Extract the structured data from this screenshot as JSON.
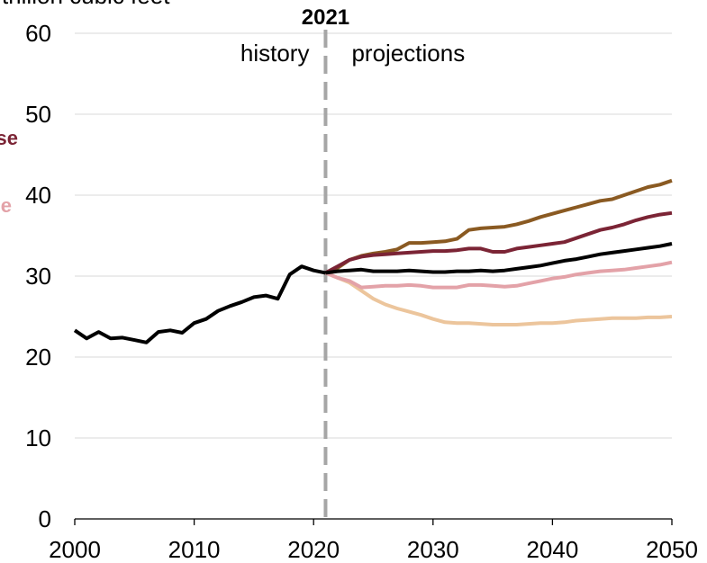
{
  "chart_data": {
    "type": "line",
    "ylabel": "trillion cubic feet",
    "vline": 2021,
    "annotations": [
      {
        "text": "history"
      },
      {
        "text": "projections"
      },
      {
        "text": "se",
        "color": "#7b2435"
      },
      {
        "text": "e",
        "color": "#e3a2a8"
      }
    ],
    "x": [
      2000,
      2001,
      2002,
      2003,
      2004,
      2005,
      2006,
      2007,
      2008,
      2009,
      2010,
      2011,
      2012,
      2013,
      2014,
      2015,
      2016,
      2017,
      2018,
      2019,
      2020,
      2021,
      2022,
      2023,
      2024,
      2025,
      2026,
      2027,
      2028,
      2029,
      2030,
      2031,
      2032,
      2033,
      2034,
      2035,
      2036,
      2037,
      2038,
      2039,
      2040,
      2041,
      2042,
      2043,
      2044,
      2045,
      2046,
      2047,
      2048,
      2049,
      2050
    ],
    "series": [
      {
        "color": "#ecc59c",
        "values": [
          null,
          null,
          null,
          null,
          null,
          null,
          null,
          null,
          null,
          null,
          null,
          null,
          null,
          null,
          null,
          null,
          null,
          null,
          null,
          null,
          null,
          30.4,
          29.8,
          29.2,
          28.2,
          27.2,
          26.5,
          26.0,
          25.6,
          25.2,
          24.7,
          24.3,
          24.2,
          24.2,
          24.1,
          24.0,
          24.0,
          24.0,
          24.1,
          24.2,
          24.2,
          24.3,
          24.5,
          24.6,
          24.7,
          24.8,
          24.8,
          24.8,
          24.9,
          24.9,
          25.0
        ]
      },
      {
        "color": "#e3a2a8",
        "values": [
          null,
          null,
          null,
          null,
          null,
          null,
          null,
          null,
          null,
          null,
          null,
          null,
          null,
          null,
          null,
          null,
          null,
          null,
          null,
          null,
          null,
          30.4,
          29.8,
          29.4,
          28.6,
          28.7,
          28.8,
          28.8,
          28.9,
          28.8,
          28.6,
          28.6,
          28.6,
          28.9,
          28.9,
          28.8,
          28.7,
          28.8,
          29.1,
          29.4,
          29.7,
          29.9,
          30.2,
          30.4,
          30.6,
          30.7,
          30.8,
          31.0,
          31.2,
          31.4,
          31.7
        ]
      },
      {
        "color": "#8a5a22",
        "values": [
          null,
          null,
          null,
          null,
          null,
          null,
          null,
          null,
          null,
          null,
          null,
          null,
          null,
          null,
          null,
          null,
          null,
          null,
          null,
          null,
          null,
          30.4,
          31.0,
          32.0,
          32.5,
          32.8,
          33.0,
          33.3,
          34.1,
          34.1,
          34.2,
          34.3,
          34.6,
          35.7,
          35.9,
          36.0,
          36.1,
          36.4,
          36.8,
          37.3,
          37.7,
          38.1,
          38.5,
          38.9,
          39.3,
          39.5,
          40.0,
          40.5,
          41.0,
          41.3,
          41.8
        ]
      },
      {
        "color": "#7b2435",
        "values": [
          null,
          null,
          null,
          null,
          null,
          null,
          null,
          null,
          null,
          null,
          null,
          null,
          null,
          null,
          null,
          null,
          null,
          null,
          null,
          null,
          null,
          30.4,
          31.2,
          32.0,
          32.4,
          32.6,
          32.7,
          32.8,
          32.9,
          33.0,
          33.1,
          33.1,
          33.2,
          33.4,
          33.4,
          33.0,
          33.0,
          33.4,
          33.6,
          33.8,
          34.0,
          34.2,
          34.7,
          35.2,
          35.7,
          36.0,
          36.4,
          36.9,
          37.3,
          37.6,
          37.8
        ]
      },
      {
        "color": "#000000",
        "values": [
          null,
          null,
          null,
          null,
          null,
          null,
          null,
          null,
          null,
          null,
          null,
          null,
          null,
          null,
          null,
          null,
          null,
          null,
          null,
          null,
          null,
          30.4,
          30.6,
          30.7,
          30.8,
          30.6,
          30.6,
          30.6,
          30.7,
          30.6,
          30.5,
          30.5,
          30.6,
          30.6,
          30.7,
          30.6,
          30.7,
          30.9,
          31.1,
          31.3,
          31.6,
          31.9,
          32.1,
          32.4,
          32.7,
          32.9,
          33.1,
          33.3,
          33.5,
          33.7,
          34.0
        ]
      },
      {
        "color": "#000000",
        "values": [
          23.3,
          22.3,
          23.1,
          22.3,
          22.4,
          22.1,
          21.8,
          23.1,
          23.3,
          23.0,
          24.2,
          24.7,
          25.7,
          26.3,
          26.8,
          27.4,
          27.6,
          27.2,
          30.2,
          31.2,
          30.7,
          30.4,
          null,
          null,
          null,
          null,
          null,
          null,
          null,
          null,
          null,
          null,
          null,
          null,
          null,
          null,
          null,
          null,
          null,
          null,
          null,
          null,
          null,
          null,
          null,
          null,
          null,
          null,
          null,
          null,
          null
        ]
      }
    ],
    "xlim": [
      2000,
      2050
    ],
    "xticks": [
      2000,
      2010,
      2020,
      2030,
      2040,
      2050
    ],
    "ylim": [
      0,
      60
    ],
    "yticks": [
      0,
      10,
      20,
      30,
      40,
      50,
      60
    ],
    "grid": true
  }
}
